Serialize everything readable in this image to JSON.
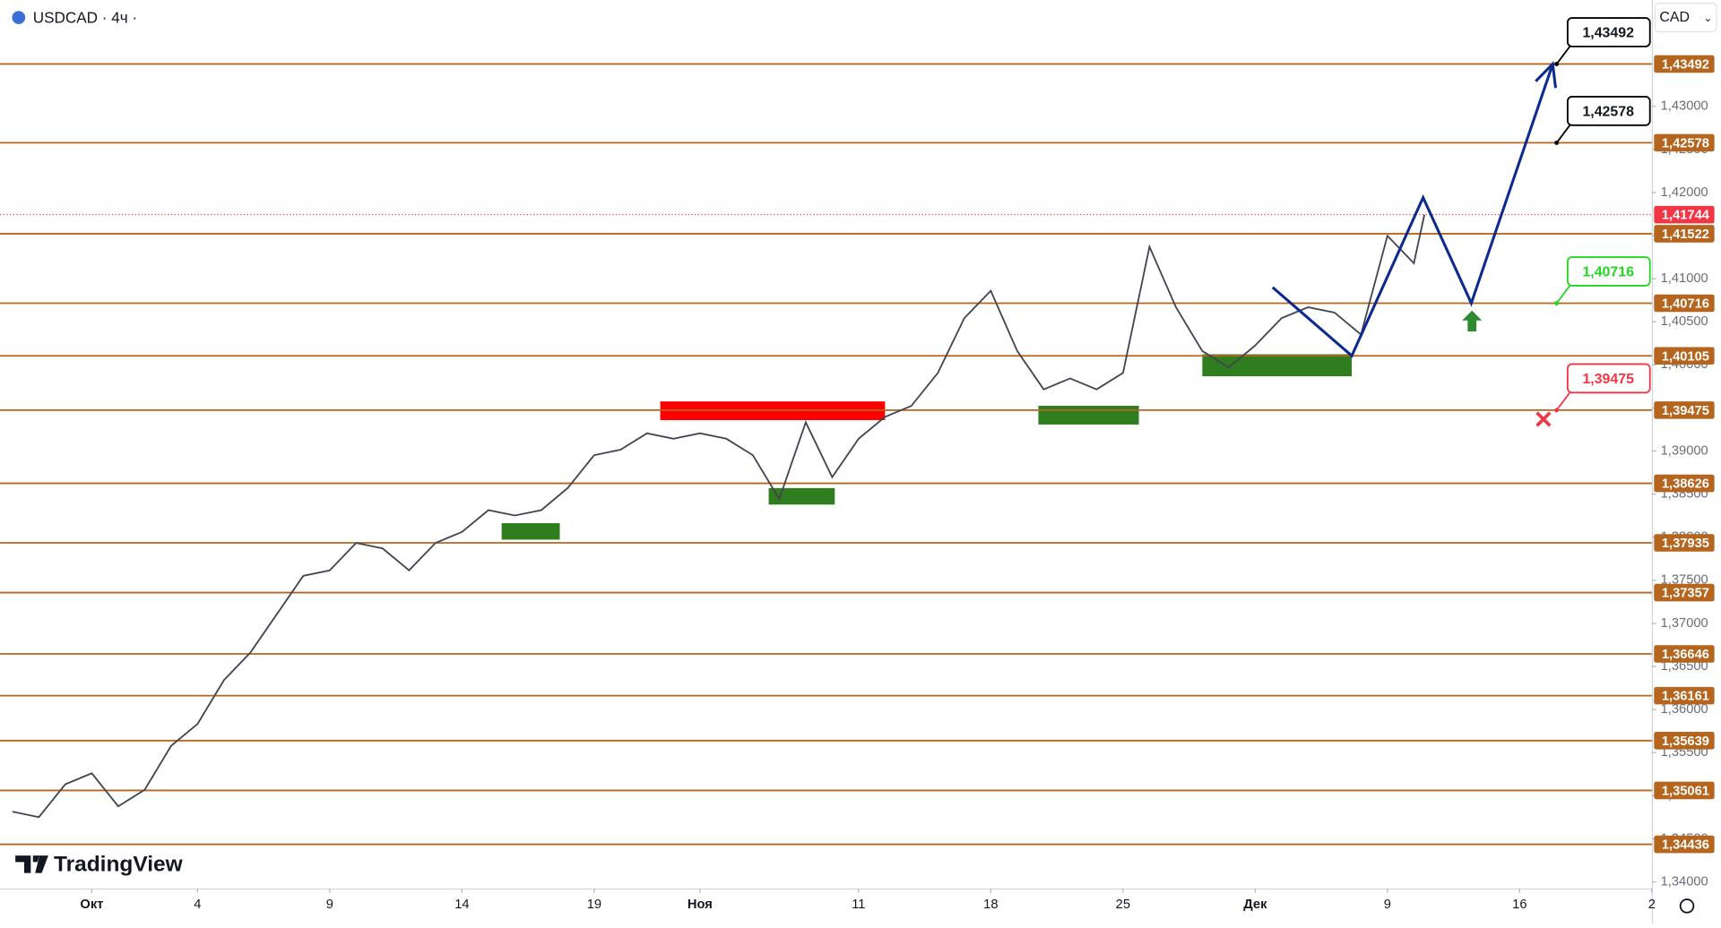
{
  "chart_data": {
    "type": "line",
    "title": "USDCAD · 4ч ·",
    "currency_label": "CAD",
    "watermark": "TradingView",
    "xlim": [
      -3.47,
      59
    ],
    "ylim": [
      1.33924,
      1.44235
    ],
    "xticks": [
      {
        "value": 0,
        "label": "Окт"
      },
      4,
      9,
      14,
      19,
      {
        "value": 23,
        "label": "Ноя"
      },
      {
        "value": 29,
        "label": "11"
      },
      {
        "value": 34,
        "label": "18"
      },
      {
        "value": 39,
        "label": "25"
      },
      {
        "value": 44,
        "label": "Дек"
      },
      {
        "value": 49,
        "label": "9"
      },
      {
        "value": 54,
        "label": "16"
      },
      {
        "value": 59,
        "label": "2"
      }
    ],
    "yticks": [
      {
        "value": 1.34,
        "label": "1,34000"
      },
      {
        "value": 1.345,
        "label": "1,34500"
      },
      {
        "value": 1.35,
        "label": "1,35000"
      },
      {
        "value": 1.355,
        "label": "1,35500"
      },
      {
        "value": 1.36,
        "label": "1,36000"
      },
      {
        "value": 1.365,
        "label": "1,36500"
      },
      {
        "value": 1.37,
        "label": "1,37000"
      },
      {
        "value": 1.375,
        "label": "1,37500"
      },
      {
        "value": 1.38,
        "label": "1,38000"
      },
      {
        "value": 1.385,
        "label": "1,38500"
      },
      {
        "value": 1.39,
        "label": "1,39000"
      },
      {
        "value": 1.395,
        "label": "1,39500"
      },
      {
        "value": 1.4,
        "label": "1,40000"
      },
      {
        "value": 1.405,
        "label": "1,40500"
      },
      {
        "value": 1.41,
        "label": "1,41000"
      },
      {
        "value": 1.415,
        "label": "1,41500"
      },
      {
        "value": 1.42,
        "label": "1,42000"
      },
      {
        "value": 1.425,
        "label": "1,42500"
      },
      {
        "value": 1.43,
        "label": "1,43000"
      }
    ],
    "series": [
      {
        "color": "#434651",
        "x": [
          -3,
          -2,
          -1,
          0,
          1,
          2,
          3,
          4,
          5,
          6,
          7,
          8,
          9,
          10,
          11,
          12,
          13,
          14,
          15,
          16,
          17,
          18,
          19,
          20,
          21,
          22,
          23,
          24,
          25,
          26,
          27,
          28,
          29,
          30,
          31,
          32,
          33,
          34,
          35,
          36,
          37,
          38,
          39,
          40,
          41,
          42,
          43,
          44,
          45,
          46,
          47,
          48,
          49,
          50,
          50.4
        ],
        "values": [
          1.34815,
          1.34751,
          1.35133,
          1.3526,
          1.34878,
          1.35069,
          1.35579,
          1.35833,
          1.36342,
          1.36661,
          1.37106,
          1.37552,
          1.37615,
          1.37934,
          1.3787,
          1.37615,
          1.37934,
          1.38061,
          1.38315,
          1.38252,
          1.38315,
          1.3857,
          1.38952,
          1.39016,
          1.39207,
          1.39143,
          1.39207,
          1.39143,
          1.38952,
          1.38443,
          1.39334,
          1.38697,
          1.39143,
          1.39397,
          1.39525,
          1.39907,
          1.40543,
          1.40861,
          1.40161,
          1.39716,
          1.39843,
          1.39716,
          1.39907,
          1.41371,
          1.4067,
          1.40161,
          1.3997,
          1.40225,
          1.40543,
          1.4067,
          1.40607,
          1.40352,
          1.41498,
          1.4118,
          1.41744
        ]
      }
    ],
    "levels": [
      {
        "value": 1.43492,
        "label": "1,43492"
      },
      {
        "value": 1.42578,
        "label": "1,42578"
      },
      {
        "value": 1.41522,
        "label": "1,41522"
      },
      {
        "value": 1.40716,
        "label": "1,40716"
      },
      {
        "value": 1.40105,
        "label": "1,40105"
      },
      {
        "value": 1.39475,
        "label": "1,39475"
      },
      {
        "value": 1.38626,
        "label": "1,38626"
      },
      {
        "value": 1.37935,
        "label": "1,37935"
      },
      {
        "value": 1.37357,
        "label": "1,37357"
      },
      {
        "value": 1.36646,
        "label": "1,36646"
      },
      {
        "value": 1.36161,
        "label": "1,36161"
      },
      {
        "value": 1.35639,
        "label": "1,35639"
      },
      {
        "value": 1.35061,
        "label": "1,35061"
      },
      {
        "value": 1.34436,
        "label": "1,34436"
      }
    ],
    "level_color": "#b5651d",
    "current_price": {
      "value": 1.41744,
      "label": "1,41744",
      "color": "#f23645"
    },
    "zones": [
      {
        "x": [
          21.5,
          30.0
        ],
        "y": [
          1.39359,
          1.39576
        ],
        "color": "#ff0000"
      },
      {
        "x": [
          15.5,
          17.7
        ],
        "y": [
          1.37972,
          1.38163
        ],
        "color": "#2e7d1e"
      },
      {
        "x": [
          25.6,
          28.1
        ],
        "y": [
          1.38379,
          1.3857
        ],
        "color": "#2e7d1e"
      },
      {
        "x": [
          35.8,
          39.6
        ],
        "y": [
          1.39308,
          1.39525
        ],
        "color": "#2e7d1e"
      },
      {
        "x": [
          42.0,
          47.65
        ],
        "y": [
          1.39868,
          1.40123
        ],
        "color": "#2e7d1e"
      }
    ],
    "forecast": {
      "color": "#0d2a8f",
      "x": [
        44.66,
        47.65,
        50.35,
        52.17,
        55.25
      ],
      "values": [
        1.409,
        1.40105,
        1.41943,
        1.40716,
        1.43492
      ]
    },
    "callouts": [
      {
        "x": 55.4,
        "value": 1.43492,
        "label": "1,43492",
        "color": "#000000"
      },
      {
        "x": 55.4,
        "value": 1.42578,
        "label": "1,42578",
        "color": "#000000"
      },
      {
        "x": 55.4,
        "value": 1.40716,
        "label": "1,40716",
        "color": "#22d822"
      },
      {
        "x": 55.4,
        "value": 1.39475,
        "label": "1,39475",
        "color": "#f23645"
      }
    ],
    "buy_signal": {
      "x": 52.2,
      "value": 1.4063,
      "color": "#2e8b2e"
    },
    "sell_signal": {
      "x": 54.9,
      "value": 1.3937,
      "color": "#f23645"
    }
  }
}
